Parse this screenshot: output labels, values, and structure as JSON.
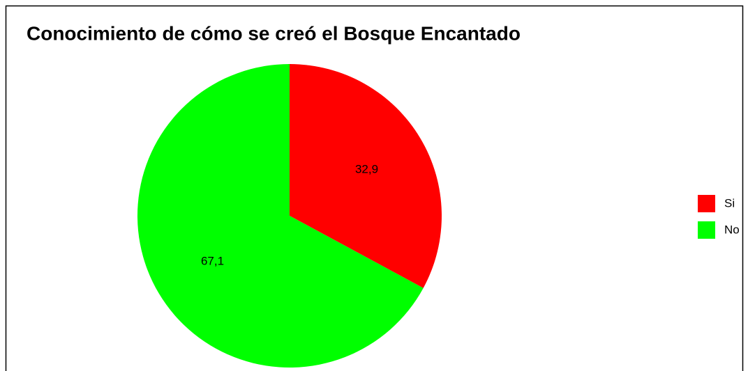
{
  "chart_data": {
    "type": "pie",
    "title": "Conocimiento de cómo se creó el Bosque Encantado",
    "categories": [
      "Si",
      "No"
    ],
    "values": [
      32.9,
      67.1
    ],
    "value_labels": [
      "32,9",
      "67,1"
    ],
    "colors": [
      "#ff0000",
      "#00ff00"
    ],
    "legend": "right"
  }
}
